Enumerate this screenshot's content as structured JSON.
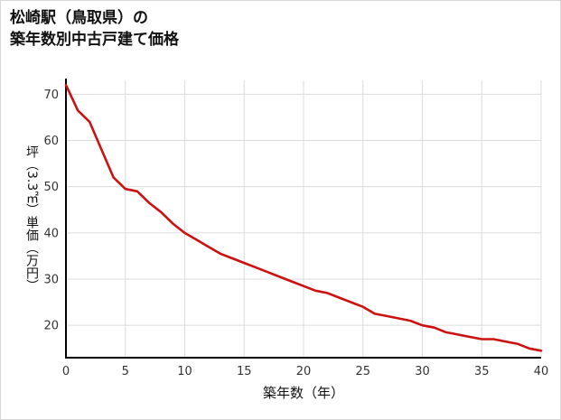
{
  "title": {
    "line1": "松崎駅（鳥取県）の",
    "line2": "築年数別中古戸建て価格"
  },
  "chart_data": {
    "type": "line",
    "title": "松崎駅（鳥取県）の築年数別中古戸建て価格",
    "xlabel": "築年数（年）",
    "ylabel": "坪（3.3㎡）単価（万円）",
    "x": [
      0,
      1,
      2,
      3,
      4,
      5,
      6,
      7,
      8,
      9,
      10,
      11,
      12,
      13,
      14,
      15,
      16,
      17,
      18,
      19,
      20,
      21,
      22,
      23,
      24,
      25,
      26,
      27,
      28,
      29,
      30,
      31,
      32,
      33,
      34,
      35,
      36,
      37,
      38,
      39,
      40
    ],
    "values": [
      72,
      66.5,
      64,
      58,
      52,
      49.5,
      49,
      46.5,
      44.5,
      42,
      40,
      38.5,
      37,
      35.5,
      34.5,
      33.5,
      32.5,
      31.5,
      30.5,
      29.5,
      28.5,
      27.5,
      27,
      26,
      25,
      24,
      22.5,
      22,
      21.5,
      21,
      20,
      19.5,
      18.5,
      18,
      17.5,
      17,
      17,
      16.5,
      16,
      15,
      14.5
    ],
    "xlim": [
      0,
      40
    ],
    "ylim": [
      13,
      73
    ],
    "xticks": [
      0,
      5,
      10,
      15,
      20,
      25,
      30,
      35,
      40
    ],
    "yticks": [
      20,
      30,
      40,
      50,
      60,
      70
    ],
    "grid": true,
    "legend": "none",
    "line_color": "#cc1111",
    "grid_color": "#dcdcdc",
    "axis_color": "#000000",
    "tick_label_color": "#333333"
  }
}
